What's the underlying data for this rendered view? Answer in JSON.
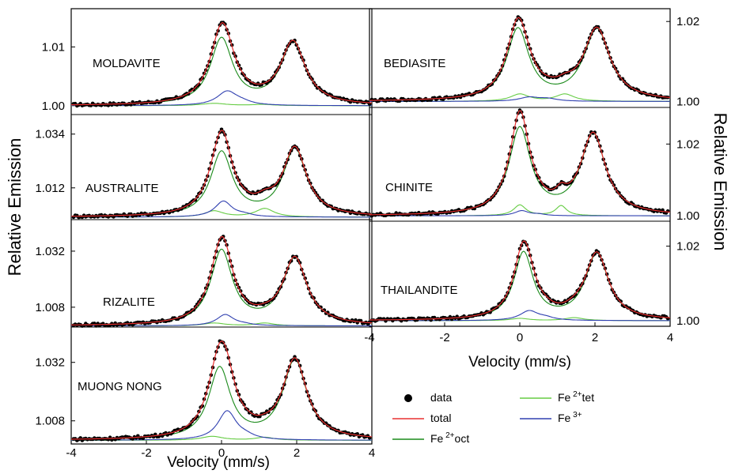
{
  "figure": {
    "ylabel_left": "Relative Emission",
    "ylabel_right": "Relative Emission",
    "xlabel_left": "Velocity (mm/s)",
    "xlabel_right": "Velocity (mm/s)"
  },
  "legend": [
    {
      "label": "data",
      "kind": "dot",
      "color": "#000000"
    },
    {
      "label": "Fe",
      "sup": "2+",
      "suffix": "tet",
      "kind": "line",
      "color": "#66cc44"
    },
    {
      "label": "total",
      "kind": "line",
      "color": "#e83030"
    },
    {
      "label": "Fe",
      "sup": "3+",
      "suffix": "",
      "kind": "line",
      "color": "#3040b0"
    },
    {
      "label": "Fe",
      "sup": "2+",
      "suffix": "oct",
      "kind": "line",
      "color": "#1a8a1a"
    }
  ],
  "colors": {
    "data": "#000000",
    "total": "#e83030",
    "oct": "#1a8a1a",
    "tet": "#66cc44",
    "fe3": "#3040b0"
  },
  "chart_data": [
    {
      "type": "line",
      "sample": "MOLDAVITE",
      "panel": "left-1",
      "xlim": [
        -4,
        4
      ],
      "ylim": [
        0.9985,
        1.0165
      ],
      "yticks": [
        1.0,
        1.01
      ],
      "ytick_labels": [
        "1.00",
        "1.01"
      ],
      "peaks": [
        0.0,
        1.9
      ],
      "series": [
        {
          "name": "Fe2+ oct",
          "color_key": "oct",
          "lines": [
            {
              "c": 0.0,
              "w": 0.72,
              "a": 0.0112
            },
            {
              "c": 1.9,
              "w": 0.8,
              "a": 0.0106
            }
          ]
        },
        {
          "name": "Fe2+ tet",
          "color_key": "tet",
          "lines": [
            {
              "c": -0.2,
              "w": 0.8,
              "a": 0.0004
            },
            {
              "c": 1.1,
              "w": 0.7,
              "a": 0.0002
            }
          ]
        },
        {
          "name": "Fe3+",
          "color_key": "fe3",
          "lines": [
            {
              "c": 0.15,
              "w": 0.65,
              "a": 0.0024
            },
            {
              "c": 0.55,
              "w": 0.6,
              "a": 0.0004
            }
          ]
        }
      ]
    },
    {
      "type": "line",
      "sample": "AUSTRALITE",
      "panel": "left-2",
      "xlim": [
        -4,
        4
      ],
      "ylim": [
        0.999,
        1.042
      ],
      "yticks": [
        1.012,
        1.034
      ],
      "ytick_labels": [
        "1.012",
        "1.034"
      ],
      "peaks": [
        0.0,
        1.95
      ],
      "series": [
        {
          "name": "Fe2+ oct",
          "color_key": "oct",
          "lines": [
            {
              "c": 0.0,
              "w": 0.7,
              "a": 0.0262
            },
            {
              "c": 1.95,
              "w": 0.76,
              "a": 0.0276
            }
          ]
        },
        {
          "name": "Fe2+ tet",
          "color_key": "tet",
          "lines": [
            {
              "c": -0.2,
              "w": 0.6,
              "a": 0.0025
            },
            {
              "c": 1.15,
              "w": 0.6,
              "a": 0.0035
            }
          ]
        },
        {
          "name": "Fe3+",
          "color_key": "fe3",
          "lines": [
            {
              "c": 0.05,
              "w": 0.55,
              "a": 0.0065
            },
            {
              "c": 0.6,
              "w": 0.5,
              "a": 0.0008
            }
          ]
        }
      ]
    },
    {
      "type": "line",
      "sample": "RIZALITE",
      "panel": "left-3",
      "xlim": [
        -4,
        4
      ],
      "ylim": [
        0.9995,
        1.0455
      ],
      "yticks": [
        1.008,
        1.032
      ],
      "ytick_labels": [
        "1.008",
        "1.032"
      ],
      "peaks": [
        0.0,
        1.95
      ],
      "series": [
        {
          "name": "Fe2+ oct",
          "color_key": "oct",
          "lines": [
            {
              "c": 0.0,
              "w": 0.7,
              "a": 0.0318
            },
            {
              "c": 1.95,
              "w": 0.78,
              "a": 0.0285
            }
          ]
        },
        {
          "name": "Fe2+ tet",
          "color_key": "tet",
          "lines": [
            {
              "c": -0.2,
              "w": 0.7,
              "a": 0.0012
            },
            {
              "c": 1.15,
              "w": 0.6,
              "a": 0.0012
            }
          ]
        },
        {
          "name": "Fe3+",
          "color_key": "fe3",
          "lines": [
            {
              "c": 0.1,
              "w": 0.55,
              "a": 0.0048
            },
            {
              "c": 0.6,
              "w": 0.5,
              "a": 0.0005
            }
          ]
        }
      ]
    },
    {
      "type": "line",
      "sample": "MUONG NONG",
      "panel": "left-4",
      "xlim": [
        -4,
        4
      ],
      "ylim": [
        0.9985,
        1.0465
      ],
      "yticks": [
        1.008,
        1.032
      ],
      "ytick_labels": [
        "1.008",
        "1.032"
      ],
      "peaks": [
        -0.05,
        1.95
      ],
      "series": [
        {
          "name": "Fe2+ oct",
          "color_key": "oct",
          "lines": [
            {
              "c": -0.05,
              "w": 0.7,
              "a": 0.0292
            },
            {
              "c": 1.95,
              "w": 0.78,
              "a": 0.0325
            }
          ]
        },
        {
          "name": "Fe2+ tet",
          "color_key": "tet",
          "lines": [
            {
              "c": -0.25,
              "w": 0.7,
              "a": 0.0016
            },
            {
              "c": 1.15,
              "w": 0.6,
              "a": 0.0012
            }
          ]
        },
        {
          "name": "Fe3+",
          "color_key": "fe3",
          "lines": [
            {
              "c": 0.15,
              "w": 0.6,
              "a": 0.012
            },
            {
              "c": 0.65,
              "w": 0.5,
              "a": 0.001
            }
          ]
        }
      ]
    },
    {
      "type": "line",
      "sample": "BEDIASITE",
      "panel": "right-1",
      "xlim": [
        -4,
        4
      ],
      "ylim": [
        0.9985,
        1.0232
      ],
      "yticks": [
        1.0,
        1.02
      ],
      "ytick_labels": [
        "1.00",
        "1.02"
      ],
      "peaks": [
        -0.05,
        2.05
      ],
      "series": [
        {
          "name": "Fe2+ oct",
          "color_key": "oct",
          "lines": [
            {
              "c": -0.05,
              "w": 0.72,
              "a": 0.0178
            },
            {
              "c": 2.05,
              "w": 0.85,
              "a": 0.0178
            }
          ]
        },
        {
          "name": "Fe2+ tet",
          "color_key": "tet",
          "lines": [
            {
              "c": 0.0,
              "w": 0.6,
              "a": 0.0018
            },
            {
              "c": 1.2,
              "w": 0.6,
              "a": 0.0018
            }
          ]
        },
        {
          "name": "Fe3+",
          "color_key": "fe3",
          "lines": [
            {
              "c": 0.25,
              "w": 0.65,
              "a": 0.001
            },
            {
              "c": 0.75,
              "w": 0.6,
              "a": 0.0006
            }
          ]
        }
      ]
    },
    {
      "type": "line",
      "sample": "CHINITE",
      "panel": "right-2",
      "xlim": [
        -4,
        4
      ],
      "ylim": [
        0.9985,
        1.0302
      ],
      "yticks": [
        1.0,
        1.02
      ],
      "ytick_labels": [
        "1.00",
        "1.02"
      ],
      "peaks": [
        0.0,
        1.95
      ],
      "series": [
        {
          "name": "Fe2+ oct",
          "color_key": "oct",
          "lines": [
            {
              "c": 0.0,
              "w": 0.7,
              "a": 0.024
            },
            {
              "c": 1.95,
              "w": 0.8,
              "a": 0.0224
            }
          ]
        },
        {
          "name": "Fe2+ tet",
          "color_key": "tet",
          "lines": [
            {
              "c": 0.0,
              "w": 0.4,
              "a": 0.003
            },
            {
              "c": 1.1,
              "w": 0.35,
              "a": 0.0028
            }
          ]
        },
        {
          "name": "Fe3+",
          "color_key": "fe3",
          "lines": [
            {
              "c": 0.05,
              "w": 0.45,
              "a": 0.0014
            },
            {
              "c": 0.5,
              "w": 0.4,
              "a": 0.0004
            }
          ]
        }
      ]
    },
    {
      "type": "line",
      "sample": "THAILANDITE",
      "panel": "right-3",
      "xlim": [
        -4,
        4
      ],
      "ylim": [
        0.9985,
        1.0267
      ],
      "yticks": [
        1.0,
        1.02
      ],
      "ytick_labels": [
        "1.00",
        "1.02"
      ],
      "peaks": [
        0.1,
        2.05
      ],
      "series": [
        {
          "name": "Fe2+ oct",
          "color_key": "oct",
          "lines": [
            {
              "c": 0.1,
              "w": 0.62,
              "a": 0.018
            },
            {
              "c": 2.05,
              "w": 0.75,
              "a": 0.0178
            }
          ]
        },
        {
          "name": "Fe2+ tet",
          "color_key": "tet",
          "lines": [
            {
              "c": 0.0,
              "w": 0.6,
              "a": 0.0006
            },
            {
              "c": 1.45,
              "w": 0.6,
              "a": 0.0008
            }
          ]
        },
        {
          "name": "Fe3+",
          "color_key": "fe3",
          "lines": [
            {
              "c": 0.25,
              "w": 0.6,
              "a": 0.0026
            },
            {
              "c": 0.7,
              "w": 0.5,
              "a": 0.0006
            }
          ]
        }
      ]
    }
  ],
  "x_axis": {
    "ticks": [
      -4,
      -2,
      0,
      2,
      4
    ],
    "tick_labels": [
      "-4",
      "-2",
      "0",
      "2",
      "4"
    ]
  }
}
